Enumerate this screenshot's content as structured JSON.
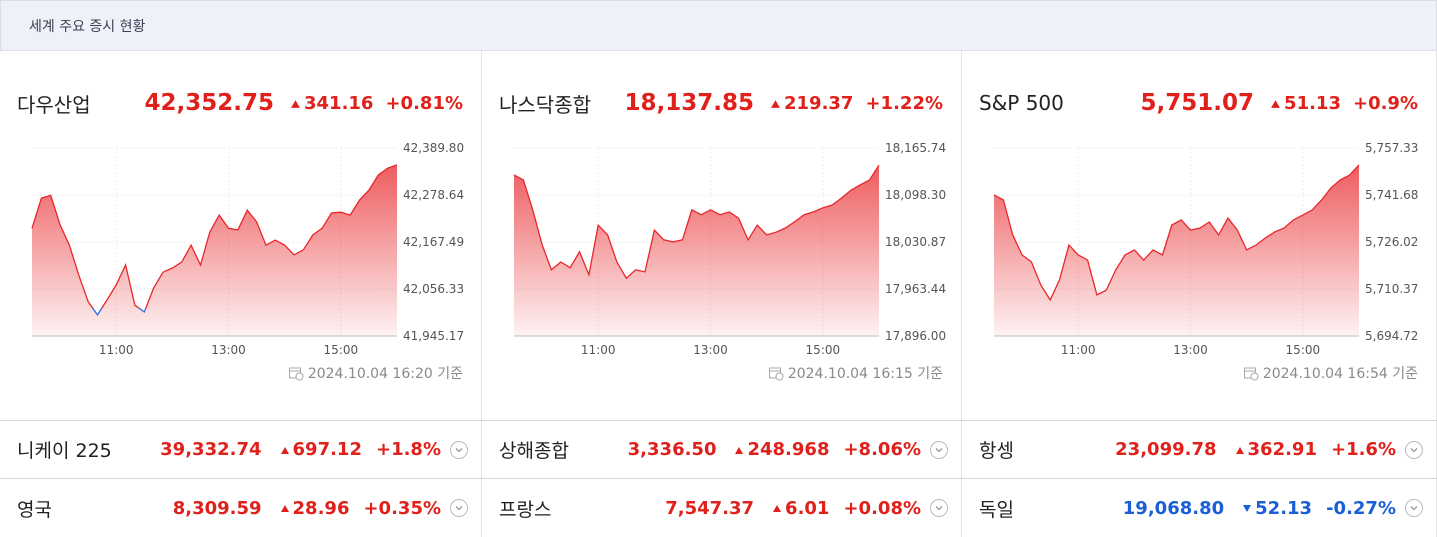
{
  "header": {
    "title": "세계 주요 증시 현황"
  },
  "colors": {
    "up": "#e0201b",
    "down": "#1a5fd6"
  },
  "panels": [
    {
      "name": "다우산업",
      "price": "42,352.75",
      "change": "341.16",
      "percent": "+0.81%",
      "direction": "up",
      "timestamp": "2024.10.04 16:20 기준"
    },
    {
      "name": "나스닥종합",
      "price": "18,137.85",
      "change": "219.37",
      "percent": "+1.22%",
      "direction": "up",
      "timestamp": "2024.10.04 16:15 기준"
    },
    {
      "name": "S&P 500",
      "price": "5,751.07",
      "change": "51.13",
      "percent": "+0.9%",
      "direction": "up",
      "timestamp": "2024.10.04 16:54 기준"
    }
  ],
  "chart_data": [
    {
      "type": "line",
      "color": "#e8262a",
      "down_color": "#2f6fe0",
      "x": [
        570,
        580,
        590,
        600,
        610,
        620,
        630,
        640,
        650,
        660,
        670,
        680,
        690,
        700,
        710,
        720,
        730,
        740,
        750,
        760,
        770,
        780,
        790,
        800,
        810,
        820,
        830,
        840,
        850,
        860,
        870,
        880,
        890,
        900,
        910,
        920,
        930,
        940,
        950,
        960
      ],
      "values": [
        42200,
        42271,
        42278,
        42208,
        42160,
        42089,
        42026,
        41995,
        42030,
        42066,
        42113,
        42018,
        42002,
        42059,
        42096,
        42106,
        42120,
        42160,
        42113,
        42191,
        42231,
        42200,
        42196,
        42243,
        42215,
        42160,
        42172,
        42160,
        42137,
        42149,
        42184,
        42200,
        42236,
        42238,
        42231,
        42267,
        42290,
        42326,
        42342,
        42350
      ],
      "xlim": [
        570,
        960
      ],
      "xticks": [
        {
          "value": 660,
          "label": "11:00"
        },
        {
          "value": 780,
          "label": "13:00"
        },
        {
          "value": 900,
          "label": "15:00"
        }
      ],
      "ylim": [
        41945.17,
        42389.8
      ],
      "yticks": [
        {
          "value": 41945.17,
          "label": "41,945.17"
        },
        {
          "value": 42056.33,
          "label": "42,056.33"
        },
        {
          "value": 42167.49,
          "label": "42,167.49"
        },
        {
          "value": 42278.64,
          "label": "42,278.64"
        },
        {
          "value": 42389.8,
          "label": "42,389.80"
        }
      ],
      "grid": true
    },
    {
      "type": "line",
      "color": "#e8262a",
      "down_color": "#2f6fe0",
      "x": [
        570,
        580,
        590,
        600,
        610,
        620,
        630,
        640,
        650,
        660,
        670,
        680,
        690,
        700,
        710,
        720,
        730,
        740,
        750,
        760,
        770,
        780,
        790,
        800,
        810,
        820,
        830,
        840,
        850,
        860,
        870,
        880,
        890,
        900,
        910,
        920,
        930,
        940,
        950,
        960
      ],
      "values": [
        18127,
        18120,
        18077,
        18027,
        17991,
        18002,
        17994,
        18017,
        17984,
        18055,
        18041,
        18002,
        17979,
        17991,
        17988,
        18048,
        18034,
        18031,
        18034,
        18077,
        18070,
        18077,
        18070,
        18074,
        18065,
        18034,
        18055,
        18041,
        18045,
        18051,
        18060,
        18070,
        18074,
        18080,
        18084,
        18094,
        18105,
        18113,
        18120,
        18141
      ],
      "xlim": [
        570,
        960
      ],
      "xticks": [
        {
          "value": 660,
          "label": "11:00"
        },
        {
          "value": 780,
          "label": "13:00"
        },
        {
          "value": 900,
          "label": "15:00"
        }
      ],
      "ylim": [
        17896.0,
        18165.74
      ],
      "yticks": [
        {
          "value": 17896.0,
          "label": "17,896.00"
        },
        {
          "value": 17963.44,
          "label": "17,963.44"
        },
        {
          "value": 18030.87,
          "label": "18,030.87"
        },
        {
          "value": 18098.3,
          "label": "18,098.30"
        },
        {
          "value": 18165.74,
          "label": "18,165.74"
        }
      ],
      "grid": true
    },
    {
      "type": "line",
      "color": "#e8262a",
      "down_color": "#2f6fe0",
      "x": [
        570,
        580,
        590,
        600,
        610,
        620,
        630,
        640,
        650,
        660,
        670,
        680,
        690,
        700,
        710,
        720,
        730,
        740,
        750,
        760,
        770,
        780,
        790,
        800,
        810,
        820,
        830,
        840,
        850,
        860,
        870,
        880,
        890,
        900,
        910,
        920,
        930,
        940,
        950,
        960
      ],
      "values": [
        5741.7,
        5740.0,
        5728.4,
        5721.7,
        5719.4,
        5711.7,
        5706.7,
        5713.4,
        5725.0,
        5721.7,
        5720.0,
        5708.4,
        5710.0,
        5716.7,
        5721.7,
        5723.4,
        5720.0,
        5723.4,
        5721.7,
        5731.7,
        5733.4,
        5730.0,
        5730.7,
        5732.7,
        5728.4,
        5734.0,
        5730.0,
        5723.4,
        5725.0,
        5727.4,
        5729.4,
        5730.7,
        5733.4,
        5735.0,
        5736.7,
        5740.0,
        5744.0,
        5746.7,
        5748.3,
        5751.7
      ],
      "xlim": [
        570,
        960
      ],
      "xticks": [
        {
          "value": 660,
          "label": "11:00"
        },
        {
          "value": 780,
          "label": "13:00"
        },
        {
          "value": 900,
          "label": "15:00"
        }
      ],
      "ylim": [
        5694.72,
        5757.33
      ],
      "yticks": [
        {
          "value": 5694.72,
          "label": "5,694.72"
        },
        {
          "value": 5710.37,
          "label": "5,710.37"
        },
        {
          "value": 5726.02,
          "label": "5,726.02"
        },
        {
          "value": 5741.68,
          "label": "5,741.68"
        },
        {
          "value": 5757.33,
          "label": "5,757.33"
        }
      ],
      "grid": true
    }
  ],
  "markets": [
    {
      "name": "니케이 225",
      "price": "39,332.74",
      "change": "697.12",
      "percent": "+1.8%",
      "direction": "up"
    },
    {
      "name": "상해종합",
      "price": "3,336.50",
      "change": "248.968",
      "percent": "+8.06%",
      "direction": "up"
    },
    {
      "name": "항셍",
      "price": "23,099.78",
      "change": "362.91",
      "percent": "+1.6%",
      "direction": "up"
    },
    {
      "name": "영국",
      "price": "8,309.59",
      "change": "28.96",
      "percent": "+0.35%",
      "direction": "up"
    },
    {
      "name": "프랑스",
      "price": "7,547.37",
      "change": "6.01",
      "percent": "+0.08%",
      "direction": "up"
    },
    {
      "name": "독일",
      "price": "19,068.80",
      "change": "52.13",
      "percent": "-0.27%",
      "direction": "down"
    }
  ]
}
